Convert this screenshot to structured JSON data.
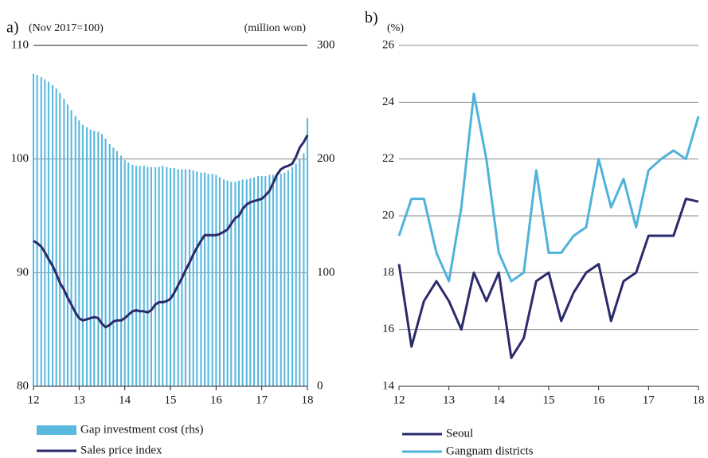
{
  "chart_data": [
    {
      "type": "combo",
      "label": "a)",
      "left_unit": "(Nov 2017=100)",
      "right_unit": "(million won)",
      "xlim": [
        12,
        18
      ],
      "xticks": [
        12,
        13,
        14,
        15,
        16,
        17,
        18
      ],
      "ylim": [
        80,
        110
      ],
      "yticks": [
        80,
        90,
        100,
        110
      ],
      "y2lim": [
        0,
        300
      ],
      "y2ticks": [
        0,
        100,
        200,
        300
      ],
      "grid": true,
      "x": [
        12,
        12.08,
        12.17,
        12.25,
        12.33,
        12.42,
        12.5,
        12.58,
        12.67,
        12.75,
        12.83,
        12.92,
        13,
        13.08,
        13.17,
        13.25,
        13.33,
        13.42,
        13.5,
        13.58,
        13.67,
        13.75,
        13.83,
        13.92,
        14,
        14.08,
        14.17,
        14.25,
        14.33,
        14.42,
        14.5,
        14.58,
        14.67,
        14.75,
        14.83,
        14.92,
        15,
        15.08,
        15.17,
        15.25,
        15.33,
        15.42,
        15.5,
        15.58,
        15.67,
        15.75,
        15.83,
        15.92,
        16,
        16.08,
        16.17,
        16.25,
        16.33,
        16.42,
        16.5,
        16.58,
        16.67,
        16.75,
        16.83,
        16.92,
        17,
        17.08,
        17.17,
        17.25,
        17.33,
        17.42,
        17.5,
        17.58,
        17.67,
        17.75,
        17.83,
        17.92,
        18
      ],
      "series": [
        {
          "name": "Gap investment cost (rhs)",
          "type": "bar",
          "axis": "y2",
          "color": "#5bb8de",
          "values": [
            275,
            274,
            272,
            270,
            268,
            265,
            262,
            258,
            253,
            248,
            243,
            238,
            234,
            230,
            228,
            226,
            225,
            224,
            222,
            218,
            213,
            210,
            207,
            203,
            199,
            197,
            195,
            194,
            194,
            194,
            193,
            193,
            193,
            193,
            194,
            193,
            192,
            192,
            191,
            191,
            191,
            191,
            190,
            189,
            188,
            188,
            187,
            187,
            186,
            184,
            182,
            181,
            180,
            180,
            181,
            182,
            182,
            183,
            184,
            185,
            185,
            185,
            186,
            186,
            186,
            187,
            188,
            190,
            193,
            196,
            200,
            205,
            236
          ]
        },
        {
          "name": "Sales price index",
          "type": "line",
          "color": "#2b2a6b",
          "values": [
            92.8,
            92.6,
            92.3,
            91.8,
            91.2,
            90.6,
            89.9,
            89.1,
            88.5,
            87.8,
            87.2,
            86.5,
            86.0,
            85.8,
            85.9,
            86.0,
            86.1,
            86.0,
            85.5,
            85.2,
            85.4,
            85.7,
            85.8,
            85.8,
            86.0,
            86.3,
            86.6,
            86.7,
            86.6,
            86.6,
            86.5,
            86.7,
            87.2,
            87.4,
            87.4,
            87.5,
            87.7,
            88.2,
            88.9,
            89.5,
            90.2,
            90.9,
            91.6,
            92.2,
            92.8,
            93.3,
            93.3,
            93.3,
            93.3,
            93.4,
            93.6,
            93.8,
            94.3,
            94.8,
            95.0,
            95.6,
            96.0,
            96.2,
            96.3,
            96.4,
            96.5,
            96.8,
            97.2,
            97.9,
            98.6,
            99.1,
            99.3,
            99.4,
            99.6,
            100.2,
            101.0,
            101.5,
            102.1
          ]
        }
      ]
    },
    {
      "type": "line",
      "label": "b)",
      "left_unit": "(%)",
      "xlim": [
        12,
        18
      ],
      "xticks": [
        12,
        13,
        14,
        15,
        16,
        17,
        18
      ],
      "ylim": [
        14,
        26
      ],
      "yticks": [
        14,
        16,
        18,
        20,
        22,
        24,
        26
      ],
      "grid": true,
      "x": [
        12,
        12.25,
        12.5,
        12.75,
        13,
        13.25,
        13.5,
        13.75,
        14,
        14.25,
        14.5,
        14.75,
        15,
        15.25,
        15.5,
        15.75,
        16,
        16.25,
        16.5,
        16.75,
        17,
        17.25,
        17.5,
        17.75,
        18
      ],
      "series": [
        {
          "name": "Seoul",
          "type": "line",
          "color": "#2b2a6b",
          "values": [
            18.3,
            15.4,
            17.0,
            17.7,
            17.0,
            16.0,
            18.0,
            17.0,
            18.0,
            15.0,
            15.7,
            17.7,
            18.0,
            16.3,
            17.3,
            18.0,
            18.3,
            16.3,
            17.7,
            18.0,
            19.3,
            19.3,
            19.3,
            20.6,
            20.5
          ]
        },
        {
          "name": "Gangnam districts",
          "type": "line",
          "color": "#4fb3d9",
          "values": [
            19.3,
            20.6,
            20.6,
            18.7,
            17.7,
            20.3,
            24.3,
            22.0,
            18.7,
            17.7,
            18.0,
            21.6,
            18.7,
            18.7,
            19.3,
            19.6,
            22.0,
            20.3,
            21.3,
            19.6,
            21.6,
            22.0,
            22.3,
            22.0,
            23.5
          ]
        }
      ]
    }
  ]
}
